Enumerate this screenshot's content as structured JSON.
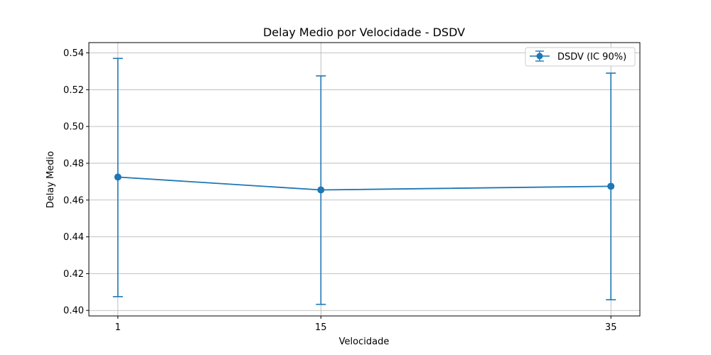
{
  "chart_data": {
    "type": "line",
    "title": "Delay Medio por Velocidade - DSDV",
    "xlabel": "Velocidade",
    "ylabel": "Delay Medio",
    "x": [
      1,
      15,
      35
    ],
    "x_tick_labels": [
      "1",
      "15",
      "35"
    ],
    "xlim": [
      -1,
      37
    ],
    "ylim": [
      0.397,
      0.5456
    ],
    "y_ticks": [
      0.4,
      0.42,
      0.44,
      0.46,
      0.48,
      0.5,
      0.52,
      0.54
    ],
    "y_tick_labels": [
      "0.40",
      "0.42",
      "0.44",
      "0.46",
      "0.48",
      "0.50",
      "0.52",
      "0.54"
    ],
    "grid": true,
    "legend_position": "top-right",
    "series": [
      {
        "name": "DSDV (IC 90%)",
        "color": "#1f77b4",
        "values": [
          0.4725,
          0.4655,
          0.4675
        ],
        "error_low": [
          0.4075,
          0.4033,
          0.4058
        ],
        "error_high": [
          0.537,
          0.5275,
          0.529
        ]
      }
    ]
  }
}
